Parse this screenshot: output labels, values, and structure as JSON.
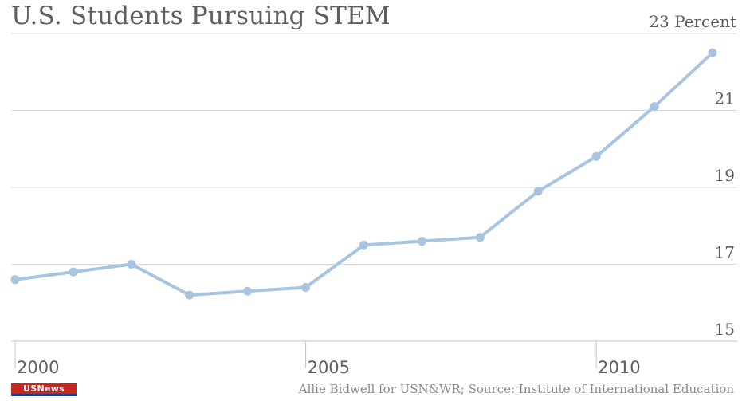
{
  "colors": {
    "line": "#a9c4e0",
    "marker": "#a9c4e0",
    "grid": "#dcdcdc",
    "axis": "#c8c8c8",
    "text": "#5e5e5e",
    "logo_red": "#c7281d",
    "logo_blue": "#1d3f8c"
  },
  "footer": {
    "source": "Allie Bidwell for USN&WR; Source: Institute of International Education",
    "logo_text": "USNews"
  },
  "chart_data": {
    "type": "line",
    "title": "U.S. Students Pursuing STEM",
    "y_unit_label": "Percent",
    "ylim": [
      15,
      23
    ],
    "y_ticks": [
      15,
      17,
      19,
      21,
      23
    ],
    "y_tick_labels": [
      "15",
      "17",
      "19",
      "21",
      "23"
    ],
    "y_axis_position": "right",
    "xlim": [
      2000,
      2012
    ],
    "x_ticks": [
      2000,
      2005,
      2010
    ],
    "x_tick_labels": [
      "2000",
      "2005",
      "2010"
    ],
    "grid": true,
    "series": [
      {
        "x": [
          2000,
          2001,
          2002,
          2003,
          2004,
          2005,
          2006,
          2007,
          2008,
          2009,
          2010,
          2011,
          2012
        ],
        "values": [
          16.6,
          16.8,
          17.0,
          16.2,
          16.3,
          16.4,
          17.5,
          17.6,
          17.7,
          18.9,
          19.8,
          21.1,
          22.5
        ]
      }
    ]
  }
}
